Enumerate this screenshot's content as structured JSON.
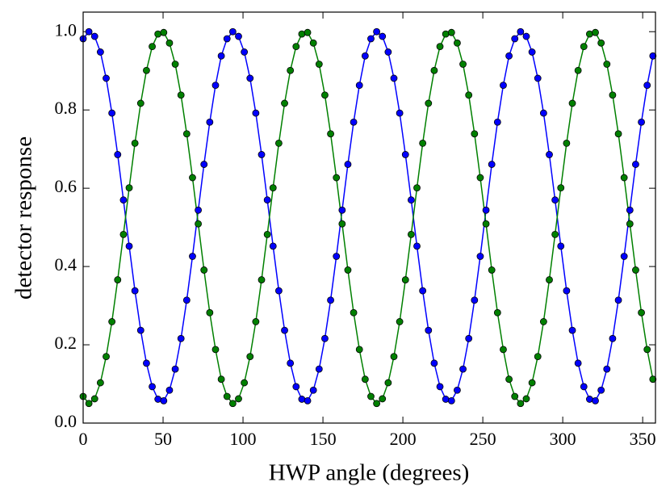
{
  "chart_data": {
    "type": "line",
    "x_label": "HWP angle (degrees)",
    "y_label": "detector response",
    "x": [
      0,
      3.6,
      7.2,
      10.8,
      14.4,
      18,
      21.6,
      25.2,
      28.8,
      32.4,
      36,
      39.6,
      43.2,
      46.8,
      50.4,
      54,
      57.6,
      61.2,
      64.8,
      68.4,
      72,
      75.6,
      79.2,
      82.8,
      86.4,
      90,
      93.6,
      97.2,
      100.8,
      104.4,
      108,
      111.6,
      115.2,
      118.8,
      122.4,
      126,
      129.6,
      133.2,
      136.8,
      140.4,
      144,
      147.6,
      151.2,
      154.8,
      158.4,
      162,
      165.6,
      169.2,
      172.8,
      176.4,
      180,
      183.6,
      187.2,
      190.8,
      194.4,
      198,
      201.6,
      205.2,
      208.8,
      212.4,
      216,
      219.6,
      223.2,
      226.8,
      230.4,
      234,
      237.6,
      241.2,
      244.8,
      248.4,
      252,
      255.6,
      259.2,
      262.8,
      266.4,
      270,
      273.6,
      277.2,
      280.8,
      284.4,
      288,
      291.6,
      295.2,
      298.8,
      302.4,
      306,
      309.6,
      313.2,
      316.8,
      320.4,
      324,
      327.6,
      331.2,
      334.8,
      338.4,
      342,
      345.6,
      349.2,
      352.8,
      356.4
    ],
    "series": [
      {
        "color": "#0000ff",
        "values": [
          0.982,
          1.0,
          0.988,
          0.948,
          0.881,
          0.792,
          0.686,
          0.57,
          0.452,
          0.338,
          0.237,
          0.153,
          0.093,
          0.061,
          0.057,
          0.084,
          0.138,
          0.216,
          0.314,
          0.426,
          0.544,
          0.661,
          0.769,
          0.863,
          0.938,
          0.982,
          1.0,
          0.988,
          0.948,
          0.881,
          0.792,
          0.686,
          0.57,
          0.452,
          0.338,
          0.237,
          0.153,
          0.093,
          0.061,
          0.057,
          0.084,
          0.138,
          0.216,
          0.314,
          0.426,
          0.544,
          0.661,
          0.769,
          0.863,
          0.938,
          0.982,
          1.0,
          0.988,
          0.948,
          0.881,
          0.792,
          0.686,
          0.57,
          0.452,
          0.338,
          0.237,
          0.153,
          0.093,
          0.061,
          0.057,
          0.084,
          0.138,
          0.216,
          0.314,
          0.426,
          0.544,
          0.661,
          0.769,
          0.863,
          0.938,
          0.982,
          1.0,
          0.988,
          0.948,
          0.881,
          0.792,
          0.686,
          0.57,
          0.452,
          0.338,
          0.237,
          0.153,
          0.093,
          0.061,
          0.057,
          0.084,
          0.138,
          0.216,
          0.314,
          0.426,
          0.544,
          0.661,
          0.769,
          0.863,
          0.938
        ]
      },
      {
        "color": "#008000",
        "values": [
          0.068,
          0.05,
          0.062,
          0.103,
          0.17,
          0.259,
          0.366,
          0.482,
          0.601,
          0.715,
          0.817,
          0.901,
          0.962,
          0.994,
          0.998,
          0.971,
          0.917,
          0.838,
          0.739,
          0.627,
          0.509,
          0.391,
          0.282,
          0.188,
          0.112,
          0.068,
          0.05,
          0.062,
          0.103,
          0.17,
          0.259,
          0.366,
          0.482,
          0.601,
          0.715,
          0.817,
          0.901,
          0.962,
          0.994,
          0.998,
          0.971,
          0.917,
          0.838,
          0.739,
          0.627,
          0.509,
          0.391,
          0.282,
          0.188,
          0.112,
          0.068,
          0.05,
          0.062,
          0.103,
          0.17,
          0.259,
          0.366,
          0.482,
          0.601,
          0.715,
          0.817,
          0.901,
          0.962,
          0.994,
          0.998,
          0.971,
          0.917,
          0.838,
          0.739,
          0.627,
          0.509,
          0.391,
          0.282,
          0.188,
          0.112,
          0.068,
          0.05,
          0.062,
          0.103,
          0.17,
          0.259,
          0.366,
          0.482,
          0.601,
          0.715,
          0.817,
          0.901,
          0.962,
          0.994,
          0.998,
          0.971,
          0.917,
          0.838,
          0.739,
          0.627,
          0.509,
          0.391,
          0.282,
          0.188,
          0.112
        ]
      }
    ],
    "xlim": [
      0,
      358
    ],
    "xticks": [
      0,
      50,
      100,
      150,
      200,
      250,
      300,
      350
    ],
    "ylim": [
      0,
      1.05
    ],
    "yticks": [
      {
        "value": 0,
        "label": "0.0"
      },
      0.2,
      0.4,
      0.6,
      0.8,
      {
        "value": 1,
        "label": "1.0"
      }
    ],
    "grid": false,
    "markers": true
  }
}
